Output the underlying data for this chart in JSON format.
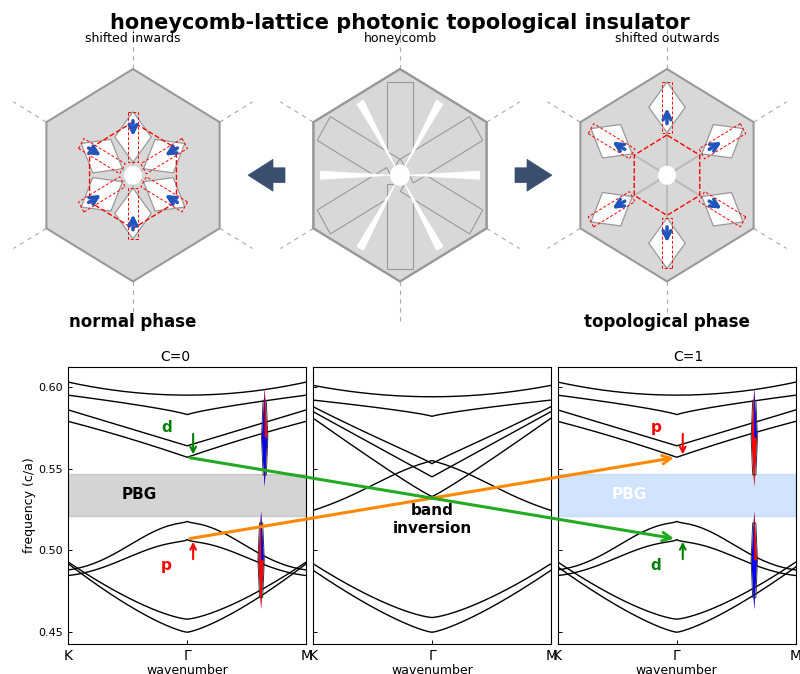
{
  "title": "honeycomb-lattice photonic topological insulator",
  "subtitle_left": "shifted inwards",
  "subtitle_center": "honeycomb",
  "subtitle_right": "shifted outwards",
  "label_left": "normal phase",
  "label_right": "topological phase",
  "clabel_left": "C=0",
  "clabel_right": "C=1",
  "band_ylabel": "frequency (c/a)",
  "band_xlabel": "wavenumber",
  "ytick_labels": [
    "0.45",
    "0.50",
    "0.55",
    "0.60"
  ],
  "ytick_vals": [
    0.45,
    0.5,
    0.55,
    0.6
  ],
  "ylim": [
    0.443,
    0.612
  ],
  "pbg_gray": [
    0.521,
    0.547
  ],
  "pbg_blue": [
    0.521,
    0.547
  ],
  "bg_color": "#ffffff",
  "band_inversion_text": "band\ninversion",
  "orange_arrow_color": "#ff8800",
  "green_arrow_color": "#22aa22",
  "hex_fill": "#d8d8d8",
  "hex_edge": "#999999",
  "arrow_dark": "#3a4f6e"
}
